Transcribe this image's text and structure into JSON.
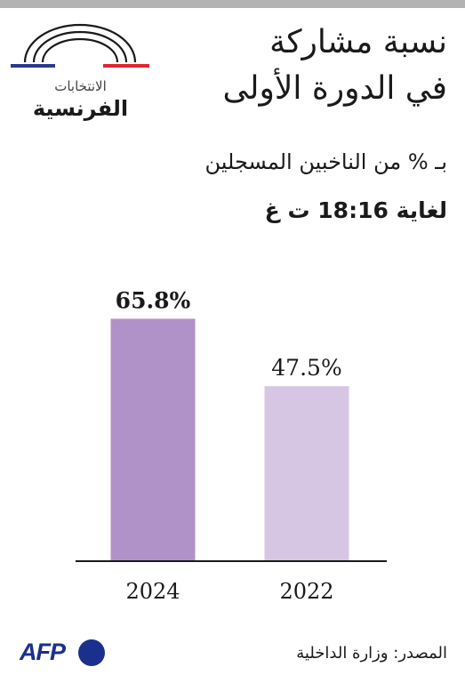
{
  "header": {
    "logo_small_text": "الانتخابات",
    "logo_big_text": "الفرنسية",
    "title_line1": "نسبة مشاركة",
    "title_line2": "في الدورة الأولى",
    "subtitle": "بـ % من الناخبين المسجلين",
    "time_note": "لغاية 18:16 ت غ"
  },
  "colors": {
    "bar_2024": "#b092c8",
    "bar_2022": "#d6c6e3",
    "flag_blue": "#2a3a8f",
    "flag_red": "#e0262f",
    "logo_arc": "#1a1a1a",
    "afp_blue": "#1b2f8c"
  },
  "chart_data": {
    "type": "bar",
    "categories": [
      "2024",
      "2022"
    ],
    "values": [
      65.8,
      47.5
    ],
    "value_labels": [
      "65.8%",
      "47.5%"
    ],
    "value_label_bold": [
      true,
      false
    ],
    "title": "نسبة مشاركة في الدورة الأولى",
    "subtitle": "بـ % من الناخبين المسجلين",
    "xlabel": "",
    "ylabel": "",
    "ylim": [
      0,
      70
    ],
    "grid": false,
    "legend": "none"
  },
  "footer": {
    "source_text": "المصدر: وزارة الداخلية",
    "logo_text": "AFP"
  }
}
